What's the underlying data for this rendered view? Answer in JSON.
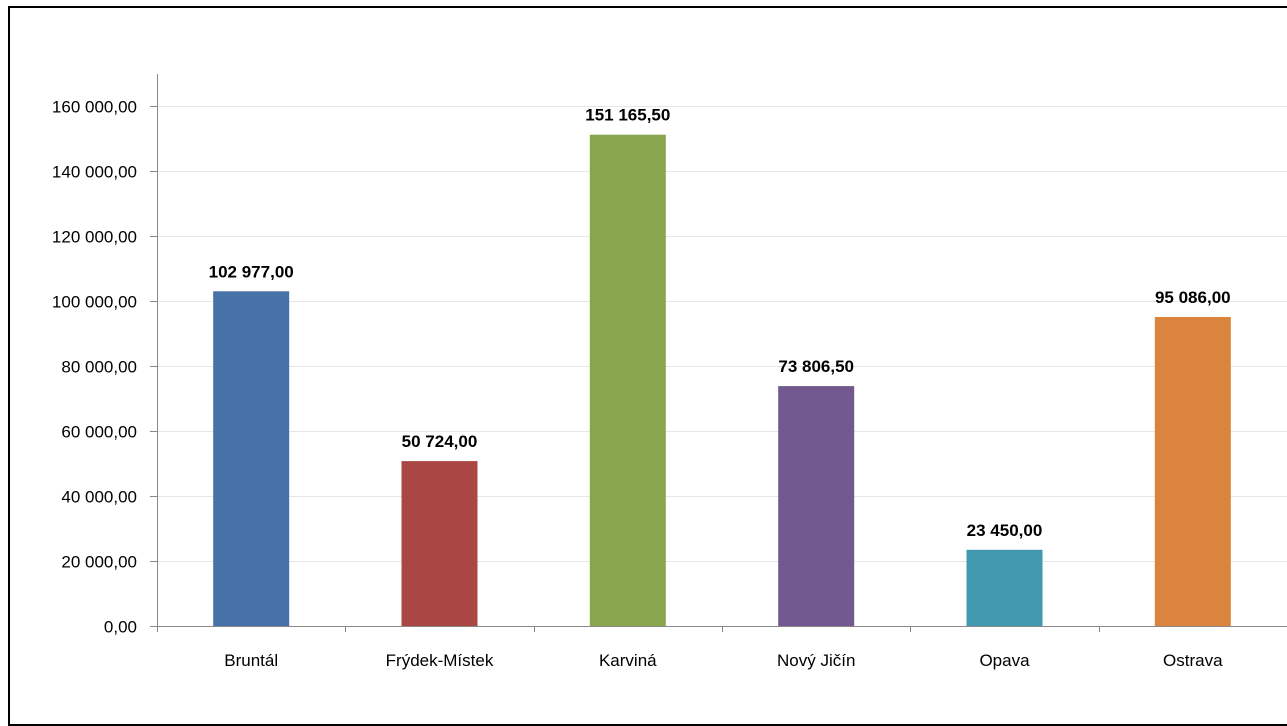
{
  "chart_data": {
    "type": "bar",
    "title": "",
    "xlabel": "",
    "ylabel": "",
    "categories": [
      "Bruntál",
      "Frýdek-Místek",
      "Karviná",
      "Nový Jičín",
      "Opava",
      "Ostrava"
    ],
    "values": [
      102977.0,
      50724.0,
      151165.5,
      73806.5,
      23450.0,
      95086.0
    ],
    "value_labels": [
      "102 977,00",
      "50 724,00",
      "151 165,50",
      "73 806,50",
      "23 450,00",
      "95 086,00"
    ],
    "colors": [
      "#4672a8",
      "#aa4744",
      "#89a54e",
      "#71588f",
      "#4198af",
      "#db843d"
    ],
    "ylim": [
      0,
      160000
    ],
    "yticks": [
      0,
      20000,
      40000,
      60000,
      80000,
      100000,
      120000,
      140000,
      160000
    ],
    "ytick_labels": [
      "0,00",
      "20 000,00",
      "40 000,00",
      "60 000,00",
      "80 000,00",
      "100 000,00",
      "120 000,00",
      "140 000,00",
      "160 000,00"
    ],
    "grid": true,
    "legend": false
  }
}
